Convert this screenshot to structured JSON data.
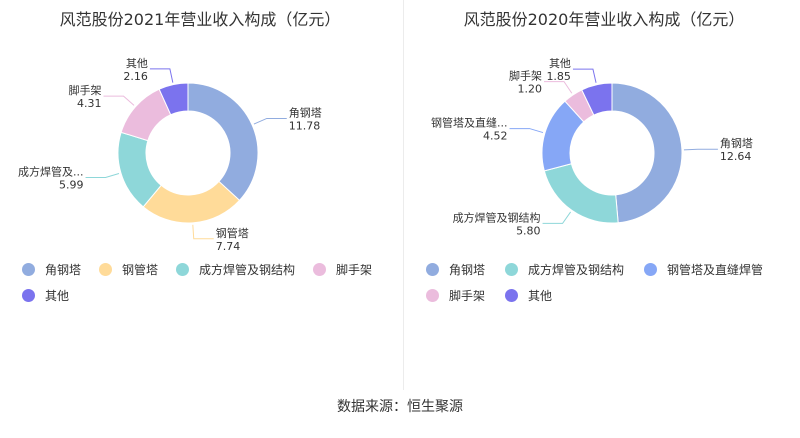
{
  "chart_data": [
    {
      "type": "pie",
      "title": "风范股份2021年营业收入构成（亿元）",
      "slices": [
        {
          "name": "角钢塔",
          "label": "角钢塔",
          "value": 11.78,
          "value_label": "11.78",
          "color": "#91ACDF"
        },
        {
          "name": "钢管塔",
          "label": "钢管塔",
          "value": 7.74,
          "value_label": "7.74",
          "color": "#FFDB99"
        },
        {
          "name": "成方焊管及钢结构",
          "label": "成方焊管及...",
          "value": 5.99,
          "value_label": "5.99",
          "color": "#8ED7D9"
        },
        {
          "name": "脚手架",
          "label": "脚手架",
          "value": 4.31,
          "value_label": "4.31",
          "color": "#EBBCDD"
        },
        {
          "name": "其他",
          "label": "其他",
          "value": 2.16,
          "value_label": "2.16",
          "color": "#7B73EE"
        }
      ],
      "legend": [
        "角钢塔",
        "钢管塔",
        "成方焊管及钢结构",
        "脚手架",
        "其他"
      ],
      "legend_placement": "bottom"
    },
    {
      "type": "pie",
      "title": "风范股份2020年营业收入构成（亿元）",
      "slices": [
        {
          "name": "角钢塔",
          "label": "角钢塔",
          "value": 12.64,
          "value_label": "12.64",
          "color": "#91ACDF"
        },
        {
          "name": "成方焊管及钢结构",
          "label": "成方焊管及钢结构",
          "value": 5.8,
          "value_label": "5.80",
          "color": "#8ED7D9"
        },
        {
          "name": "钢管塔及直缝焊管",
          "label": "钢管塔及直缝...",
          "value": 4.52,
          "value_label": "4.52",
          "color": "#86A7F6"
        },
        {
          "name": "脚手架",
          "label": "脚手架",
          "value": 1.2,
          "value_label": "1.20",
          "color": "#EBBCDD"
        },
        {
          "name": "其他",
          "label": "其他",
          "value": 1.85,
          "value_label": "1.85",
          "color": "#7B73EE"
        }
      ],
      "legend": [
        "角钢塔",
        "成方焊管及钢结构",
        "钢管塔及直缝焊管",
        "脚手架",
        "其他"
      ],
      "legend_placement": "bottom"
    }
  ],
  "footer": {
    "source": "数据来源：恒生聚源"
  }
}
